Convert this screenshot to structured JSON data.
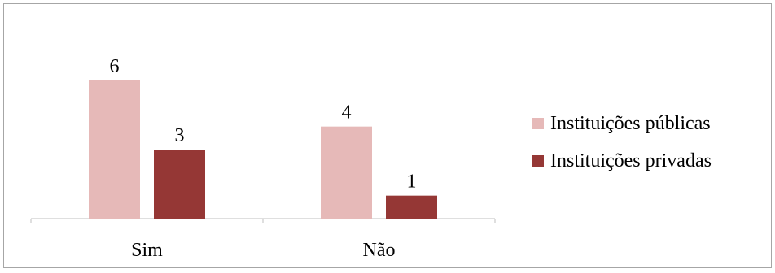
{
  "chart_data": {
    "type": "bar",
    "categories": [
      "Sim",
      "Não"
    ],
    "series": [
      {
        "name": "Instituições públicas",
        "values": [
          6,
          4
        ],
        "color": "#e6b9b8"
      },
      {
        "name": "Instituições privadas",
        "values": [
          3,
          1
        ],
        "color": "#953735"
      }
    ],
    "data_labels": true,
    "grid": false,
    "legend_position": "right",
    "ylim": [
      0,
      6
    ]
  }
}
